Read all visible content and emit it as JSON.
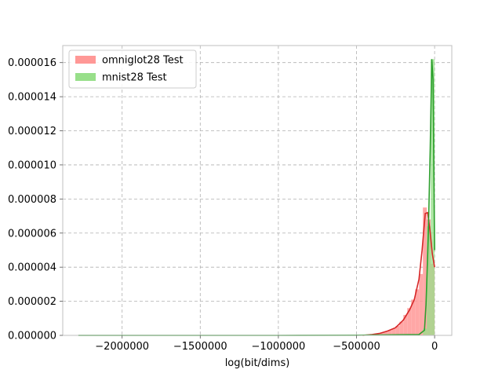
{
  "chart_data": {
    "type": "histogram-kde",
    "title": "",
    "xlabel": "log(bit/dims)",
    "ylabel": "",
    "xlim": [
      -2380000,
      110000
    ],
    "ylim": [
      0,
      1.7e-05
    ],
    "grid": true,
    "legend_position": "top-left",
    "x_ticks": [
      {
        "value": -2000000,
        "label": "−2000000"
      },
      {
        "value": -1500000,
        "label": "−1500000"
      },
      {
        "value": -1000000,
        "label": "−1000000"
      },
      {
        "value": -500000,
        "label": "−500000"
      },
      {
        "value": 0,
        "label": "0"
      }
    ],
    "y_ticks": [
      {
        "value": 0,
        "label": "0.000000"
      },
      {
        "value": 2e-06,
        "label": "0.000002"
      },
      {
        "value": 4e-06,
        "label": "0.000004"
      },
      {
        "value": 6e-06,
        "label": "0.000006"
      },
      {
        "value": 8e-06,
        "label": "0.000008"
      },
      {
        "value": 1e-05,
        "label": "0.000010"
      },
      {
        "value": 1.2e-05,
        "label": "0.000012"
      },
      {
        "value": 1.4e-05,
        "label": "0.000014"
      },
      {
        "value": 1.6e-05,
        "label": "0.000016"
      }
    ],
    "series": [
      {
        "name": "omniglot28 Test",
        "fill_color": "#ff9896",
        "line_color": "#d62728",
        "bins": [
          {
            "x0": -450000,
            "x1": -425000,
            "y": 2e-08
          },
          {
            "x0": -425000,
            "x1": -400000,
            "y": 4e-08
          },
          {
            "x0": -400000,
            "x1": -375000,
            "y": 6e-08
          },
          {
            "x0": -375000,
            "x1": -350000,
            "y": 1e-07
          },
          {
            "x0": -350000,
            "x1": -325000,
            "y": 1.6e-07
          },
          {
            "x0": -325000,
            "x1": -300000,
            "y": 2.2e-07
          },
          {
            "x0": -300000,
            "x1": -275000,
            "y": 3e-07
          },
          {
            "x0": -275000,
            "x1": -250000,
            "y": 4e-07
          },
          {
            "x0": -250000,
            "x1": -225000,
            "y": 5.5e-07
          },
          {
            "x0": -225000,
            "x1": -200000,
            "y": 8e-07
          },
          {
            "x0": -200000,
            "x1": -175000,
            "y": 1.2e-06
          },
          {
            "x0": -175000,
            "x1": -150000,
            "y": 1.6e-06
          },
          {
            "x0": -150000,
            "x1": -125000,
            "y": 2.1e-06
          },
          {
            "x0": -125000,
            "x1": -100000,
            "y": 2.7e-06
          },
          {
            "x0": -100000,
            "x1": -75000,
            "y": 3.6e-06
          },
          {
            "x0": -75000,
            "x1": -50000,
            "y": 7.5e-06
          },
          {
            "x0": -50000,
            "x1": -25000,
            "y": 6.8e-06
          },
          {
            "x0": -25000,
            "x1": 0,
            "y": 4.2e-06
          }
        ],
        "kde": [
          {
            "x": -460000,
            "y": 0.0
          },
          {
            "x": -400000,
            "y": 5e-08
          },
          {
            "x": -350000,
            "y": 1.2e-07
          },
          {
            "x": -300000,
            "y": 2.6e-07
          },
          {
            "x": -250000,
            "y": 4.5e-07
          },
          {
            "x": -200000,
            "y": 9e-07
          },
          {
            "x": -160000,
            "y": 1.5e-06
          },
          {
            "x": -130000,
            "y": 2.1e-06
          },
          {
            "x": -100000,
            "y": 3.3e-06
          },
          {
            "x": -80000,
            "y": 5e-06
          },
          {
            "x": -60000,
            "y": 7.15e-06
          },
          {
            "x": -45000,
            "y": 7.2e-06
          },
          {
            "x": -30000,
            "y": 6.2e-06
          },
          {
            "x": -15000,
            "y": 4.8e-06
          },
          {
            "x": 0,
            "y": 4e-06
          }
        ]
      },
      {
        "name": "mnist28 Test",
        "fill_color": "#98df8a",
        "line_color": "#2ca02c",
        "bins": [
          {
            "x0": -450000,
            "x1": -425000,
            "y": 5e-09
          },
          {
            "x0": -75000,
            "x1": -50000,
            "y": 4e-07
          },
          {
            "x0": -50000,
            "x1": -25000,
            "y": 6.4e-06
          },
          {
            "x0": -25000,
            "x1": 0,
            "y": 1.62e-05
          }
        ],
        "kde": [
          {
            "x": -2280000,
            "y": 0.0
          },
          {
            "x": -2000000,
            "y": 0.0
          },
          {
            "x": -1500000,
            "y": 0.0
          },
          {
            "x": -1000000,
            "y": 0.0
          },
          {
            "x": -500000,
            "y": 1e-08
          },
          {
            "x": -100000,
            "y": 5e-08
          },
          {
            "x": -65000,
            "y": 3e-07
          },
          {
            "x": -55000,
            "y": 1.8e-06
          },
          {
            "x": -40000,
            "y": 6e-06
          },
          {
            "x": -28000,
            "y": 1.1e-05
          },
          {
            "x": -18000,
            "y": 1.62e-05
          },
          {
            "x": -10000,
            "y": 1.5e-05
          },
          {
            "x": 0,
            "y": 5e-06
          }
        ]
      }
    ]
  }
}
